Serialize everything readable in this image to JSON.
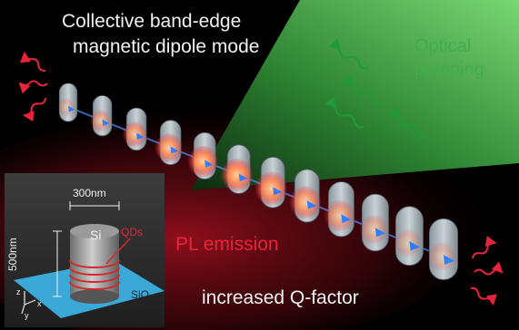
{
  "title_line1": "Collective band-edge",
  "title_line2": "magnetic dipole mode",
  "pump_line1": "Optical",
  "pump_line2": "pumping",
  "pl_label": "PL emission",
  "q_label": "increased Q-factor",
  "inset": {
    "diameter_label": "300nm",
    "height_label": "500nm",
    "material_label": "Si",
    "qd_label": "QDs",
    "substrate_label": "SiO",
    "substrate_sub": "2",
    "axis_z": "z",
    "axis_x": "x",
    "axis_y": "y"
  },
  "colors": {
    "background": "#000000",
    "green_beam": "#3fae4a",
    "red_glow": "#e8233a",
    "pillar": "#b9c3c9",
    "field_lobe": "#ff7a4a",
    "dipole_arrow": "#2f7fff",
    "substrate": "#3aa9d8"
  }
}
